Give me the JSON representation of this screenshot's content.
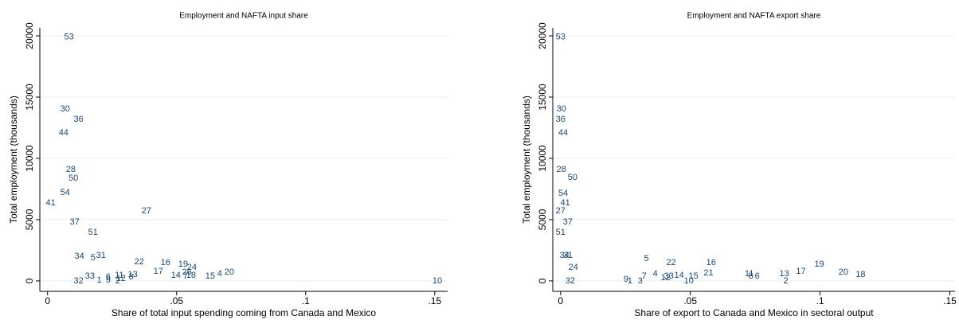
{
  "chart_data": [
    {
      "type": "scatter",
      "title": "Employment and NAFTA input share",
      "x_label": "Share of total input spending coming from Canada and Mexico",
      "y_label": "Total employment (thousands)",
      "color": "#1a476f",
      "grid": true,
      "xlim": [
        -0.003,
        0.155
      ],
      "ylim": [
        -850,
        20650
      ],
      "xticks": [
        0,
        {
          "value": 0.05,
          "label": ".05"
        },
        {
          "value": 0.1,
          "label": ".1"
        },
        {
          "value": 0.15,
          "label": ".15"
        }
      ],
      "yticks": [
        0,
        5000,
        10000,
        15000,
        20000
      ],
      "labels": [
        "53",
        "30",
        "36",
        "44",
        "28",
        "50",
        "54",
        "41",
        "27",
        "37",
        "51",
        "34",
        "5",
        "31",
        "22",
        "16",
        "19",
        "24",
        "17",
        "26",
        "14",
        "7",
        "18",
        "15",
        "4",
        "20",
        "10",
        "32",
        "33",
        "1",
        "6",
        "9",
        "11",
        "2",
        "12",
        "13",
        "8"
      ],
      "x": [
        0.0083,
        0.0068,
        0.012,
        0.0062,
        0.009,
        0.01,
        0.0068,
        0.0012,
        0.0383,
        0.0105,
        0.0176,
        0.0123,
        0.0176,
        0.0207,
        0.0355,
        0.0457,
        0.0525,
        0.0559,
        0.0429,
        0.054,
        0.0497,
        0.0534,
        0.0556,
        0.063,
        0.0667,
        0.0704,
        0.151,
        0.012,
        0.0164,
        0.02,
        0.0235,
        0.0235,
        0.0278,
        0.0272,
        0.0284,
        0.033,
        0.0324
      ],
      "y": [
        19900,
        14030,
        13180,
        12080,
        9090,
        8380,
        7210,
        6360,
        5710,
        4810,
        3960,
        2010,
        1880,
        2080,
        1560,
        1490,
        1360,
        1100,
        780,
        710,
        450,
        390,
        450,
        390,
        580,
        710,
        0,
        0,
        390,
        65,
        320,
        65,
        450,
        0,
        195,
        520,
        320
      ]
    },
    {
      "type": "scatter",
      "title": "Employment and NAFTA export share",
      "x_label": "Share of export to Canada and Mexico in sectoral output",
      "y_label": "Total employment (thousands)",
      "color": "#1a476f",
      "grid": true,
      "xlim": [
        -0.003,
        0.152
      ],
      "ylim": [
        -850,
        20650
      ],
      "xticks": [
        0,
        {
          "value": 0.05,
          "label": ".05"
        },
        {
          "value": 0.1,
          "label": ".1"
        },
        {
          "value": 0.15,
          "label": ".15"
        }
      ],
      "yticks": [
        0,
        5000,
        10000,
        15000,
        20000
      ],
      "labels": [
        "53",
        "30",
        "36",
        "44",
        "28",
        "50",
        "54",
        "41",
        "27",
        "37",
        "51",
        "34",
        "31",
        "24",
        "32",
        "5",
        "22",
        "16",
        "19",
        "21",
        "17",
        "13",
        "20",
        "18",
        "6",
        "11",
        "8",
        "2",
        "14",
        "33",
        "15",
        "4",
        "7",
        "12",
        "10",
        "9",
        "1",
        "3"
      ],
      "x": [
        0,
        0.0003,
        0,
        0.001,
        0.0003,
        0.0046,
        0.001,
        0.0018,
        0,
        0.0028,
        0,
        0.0015,
        0.0028,
        0.0049,
        0.0037,
        0.0331,
        0.0426,
        0.058,
        0.0997,
        0.057,
        0.0926,
        0.0862,
        0.109,
        0.1156,
        0.0758,
        0.0727,
        0.0733,
        0.0868,
        0.0457,
        0.0417,
        0.0512,
        0.0365,
        0.0322,
        0.0405,
        0.0494,
        0.0252,
        0.0267,
        0.0307
      ],
      "y": [
        19900,
        14030,
        13180,
        12080,
        9090,
        8440,
        7140,
        6360,
        5710,
        4810,
        3960,
        2080,
        2080,
        1100,
        0,
        1820,
        1490,
        1490,
        1360,
        650,
        780,
        580,
        710,
        520,
        390,
        580,
        390,
        0,
        450,
        390,
        390,
        580,
        390,
        260,
        0,
        130,
        0,
        0
      ]
    }
  ]
}
